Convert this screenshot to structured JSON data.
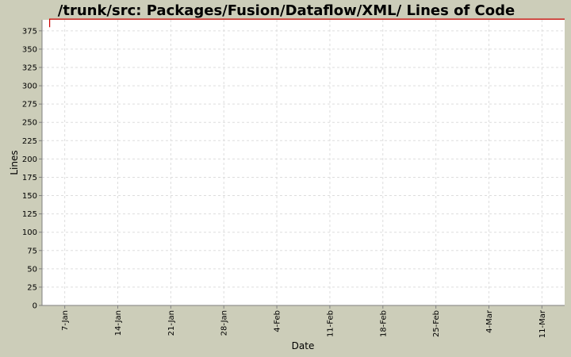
{
  "chart_data": {
    "type": "line",
    "title": "/trunk/src: Packages/Fusion/Dataflow/XML/ Lines of Code",
    "xlabel": "Date",
    "ylabel": "Lines",
    "x_ticks": [
      "7-Jan",
      "14-Jan",
      "21-Jan",
      "28-Jan",
      "4-Feb",
      "11-Feb",
      "18-Feb",
      "25-Feb",
      "4-Mar",
      "11-Mar"
    ],
    "y_ticks": [
      0,
      25,
      50,
      75,
      100,
      125,
      150,
      175,
      200,
      225,
      250,
      275,
      300,
      325,
      350,
      375
    ],
    "ylim": [
      0,
      390
    ],
    "xlim": [
      "Jan 4",
      "Mar 14"
    ],
    "grid": true,
    "series": [
      {
        "color": "#cc0000",
        "points": [
          {
            "x": "Jan 5",
            "y": 380
          },
          {
            "x": "Jan 5",
            "y": 391
          },
          {
            "x": "Mar 16",
            "y": 391
          }
        ]
      }
    ]
  },
  "colors": {
    "background": "#cccdb9",
    "plot_background": "#ffffff",
    "grid": "#dddddd",
    "series": "#cc0000",
    "axis": "#808080"
  }
}
